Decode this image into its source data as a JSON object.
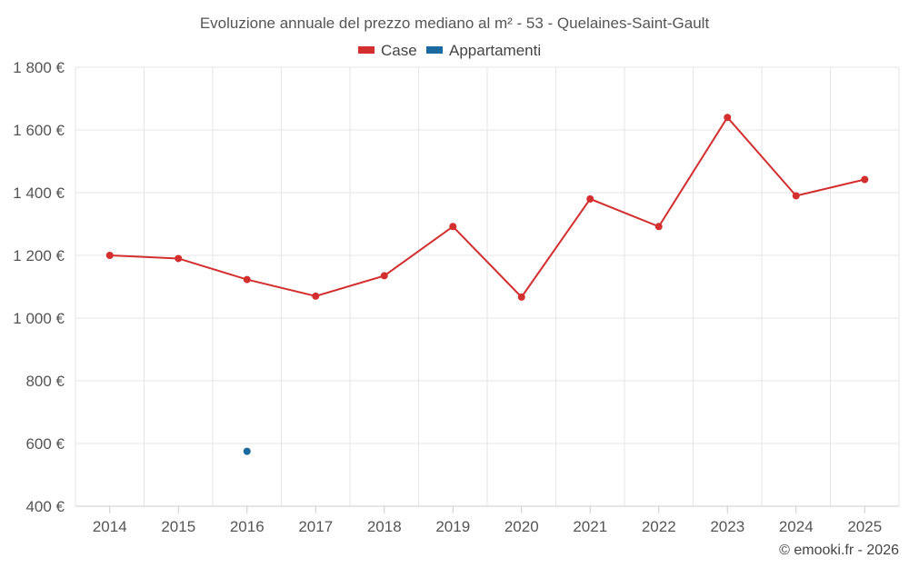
{
  "chart_data": {
    "type": "line",
    "title": "Evoluzione annuale del prezzo mediano al m² - 53 - Quelaines-Saint-Gault",
    "categories": [
      "2014",
      "2015",
      "2016",
      "2017",
      "2018",
      "2019",
      "2020",
      "2021",
      "2022",
      "2023",
      "2024",
      "2025"
    ],
    "series": [
      {
        "name": "Case",
        "color": "#d32f2f",
        "values": [
          1200,
          1190,
          1123,
          1070,
          1135,
          1292,
          1067,
          1380,
          1292,
          1640,
          1390,
          1442
        ]
      },
      {
        "name": "Appartamenti",
        "color": "#1a6aa0",
        "values": [
          null,
          null,
          575,
          null,
          null,
          null,
          null,
          null,
          null,
          null,
          null,
          null
        ]
      }
    ],
    "ylim": [
      400,
      1800
    ],
    "yticks": [
      400,
      600,
      800,
      1000,
      1200,
      1400,
      1600,
      1800
    ],
    "ytick_labels": [
      "400 €",
      "600 €",
      "800 €",
      "1 000 €",
      "1 200 €",
      "1 400 €",
      "1 600 €",
      "1 800 €"
    ],
    "xlabel": "",
    "ylabel": "",
    "grid": true,
    "legend_position": "top-center"
  },
  "credit": "© emooki.fr - 2026"
}
